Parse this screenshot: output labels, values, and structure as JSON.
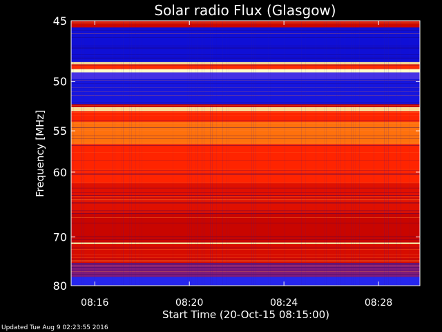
{
  "chart_data": {
    "type": "heatmap",
    "title": "Solar radio Flux (Glasgow)",
    "ylabel": "Frequency [MHz]",
    "xlabel": "Start Time (20-Oct-15 08:15:00)",
    "y_axis": {
      "min": 45,
      "max": 80,
      "inverted": true,
      "scale": "reciprocal",
      "ticks": [
        45,
        50,
        55,
        60,
        70,
        80
      ],
      "tick_labels": [
        "45",
        "50",
        "55",
        "60",
        "70",
        "80"
      ]
    },
    "x_axis": {
      "min": "08:15:00",
      "max": "08:29:45",
      "ticks": [
        "08:16",
        "08:20",
        "08:24",
        "08:28"
      ],
      "tick_labels": [
        "08:16",
        "08:20",
        "08:24",
        "08:28"
      ]
    },
    "colormap": [
      "#000000",
      "#0000c8",
      "#3838ff",
      "#c00000",
      "#ff2000",
      "#ff6000",
      "#ffc040",
      "#ffffc8"
    ],
    "bands_mhz": [
      {
        "from": 45.0,
        "to": 45.5,
        "level": 0.45
      },
      {
        "from": 45.5,
        "to": 48.3,
        "level": 0.18
      },
      {
        "from": 48.3,
        "to": 48.5,
        "level": 0.95
      },
      {
        "from": 48.5,
        "to": 48.9,
        "level": 0.6
      },
      {
        "from": 48.9,
        "to": 49.2,
        "level": 1.0
      },
      {
        "from": 49.2,
        "to": 49.8,
        "level": 0.3
      },
      {
        "from": 49.8,
        "to": 52.2,
        "level": 0.2
      },
      {
        "from": 52.2,
        "to": 52.5,
        "level": 0.45
      },
      {
        "from": 52.5,
        "to": 52.9,
        "level": 0.96
      },
      {
        "from": 52.9,
        "to": 54.0,
        "level": 0.58
      },
      {
        "from": 54.0,
        "to": 56.5,
        "level": 0.74
      },
      {
        "from": 56.5,
        "to": 61.5,
        "level": 0.58
      },
      {
        "from": 61.5,
        "to": 66.0,
        "level": 0.5
      },
      {
        "from": 66.0,
        "to": 71.0,
        "level": 0.45
      },
      {
        "from": 71.0,
        "to": 71.3,
        "level": 0.95
      },
      {
        "from": 71.3,
        "to": 75.0,
        "level": 0.48
      },
      {
        "from": 75.0,
        "to": 78.0,
        "level": 0.36
      },
      {
        "from": 78.0,
        "to": 80.0,
        "level": 0.24
      }
    ]
  },
  "footer": {
    "text": "Updated Tue Aug  9 02:23:55 2016"
  }
}
